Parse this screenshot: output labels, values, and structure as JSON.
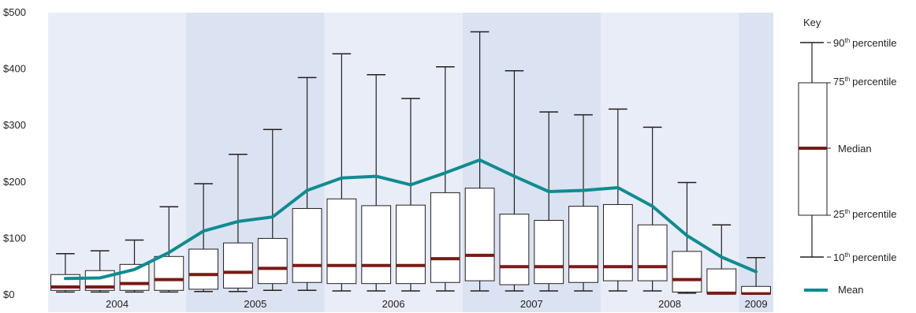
{
  "chart_data": {
    "type": "box",
    "ylim": [
      0,
      500
    ],
    "yticks": [
      0,
      100,
      200,
      300,
      400,
      500
    ],
    "ytick_labels": [
      "$0",
      "$100",
      "$200",
      "$300",
      "$400",
      "$500"
    ],
    "years": [
      {
        "label": "2004",
        "start": 0,
        "end": 4
      },
      {
        "label": "2005",
        "start": 4,
        "end": 8
      },
      {
        "label": "2006",
        "start": 8,
        "end": 12
      },
      {
        "label": "2007",
        "start": 12,
        "end": 16
      },
      {
        "label": "2008",
        "start": 16,
        "end": 20
      },
      {
        "label": "2009",
        "start": 20,
        "end": 21
      }
    ],
    "boxes": [
      {
        "p10": 5,
        "p25": 8,
        "median": 14,
        "p75": 36,
        "p90": 73
      },
      {
        "p10": 5,
        "p25": 8,
        "median": 14,
        "p75": 43,
        "p90": 78
      },
      {
        "p10": 5,
        "p25": 8,
        "median": 20,
        "p75": 54,
        "p90": 97
      },
      {
        "p10": 5,
        "p25": 8,
        "median": 27,
        "p75": 68,
        "p90": 156
      },
      {
        "p10": 6,
        "p25": 10,
        "median": 36,
        "p75": 81,
        "p90": 197
      },
      {
        "p10": 6,
        "p25": 12,
        "median": 40,
        "p75": 92,
        "p90": 249
      },
      {
        "p10": 8,
        "p25": 20,
        "median": 47,
        "p75": 100,
        "p90": 293
      },
      {
        "p10": 8,
        "p25": 22,
        "median": 52,
        "p75": 153,
        "p90": 385
      },
      {
        "p10": 7,
        "p25": 20,
        "median": 52,
        "p75": 170,
        "p90": 427
      },
      {
        "p10": 7,
        "p25": 20,
        "median": 52,
        "p75": 158,
        "p90": 390
      },
      {
        "p10": 7,
        "p25": 20,
        "median": 52,
        "p75": 159,
        "p90": 348
      },
      {
        "p10": 7,
        "p25": 22,
        "median": 64,
        "p75": 181,
        "p90": 404
      },
      {
        "p10": 7,
        "p25": 25,
        "median": 70,
        "p75": 189,
        "p90": 466
      },
      {
        "p10": 7,
        "p25": 18,
        "median": 50,
        "p75": 143,
        "p90": 397
      },
      {
        "p10": 7,
        "p25": 20,
        "median": 50,
        "p75": 132,
        "p90": 324
      },
      {
        "p10": 7,
        "p25": 22,
        "median": 50,
        "p75": 157,
        "p90": 319
      },
      {
        "p10": 7,
        "p25": 25,
        "median": 50,
        "p75": 160,
        "p90": 329
      },
      {
        "p10": 7,
        "p25": 25,
        "median": 50,
        "p75": 124,
        "p90": 297
      },
      {
        "p10": 3,
        "p25": 5,
        "median": 27,
        "p75": 77,
        "p90": 199
      },
      {
        "p10": 2,
        "p25": 3,
        "median": 3,
        "p75": 46,
        "p90": 124
      },
      {
        "p10": 2,
        "p25": 2,
        "median": 2,
        "p75": 15,
        "p90": 66
      }
    ],
    "mean": [
      29,
      30,
      45,
      75,
      113,
      130,
      138,
      185,
      207,
      210,
      195,
      216,
      239,
      210,
      183,
      185,
      190,
      157,
      105,
      67,
      41
    ],
    "legend": {
      "title": "Key",
      "p90_label": "90",
      "p75_label": "75",
      "median_label": "Median",
      "p25_label": "25",
      "p10_label": "10",
      "ordinal_suffix": "th",
      "percentile_word": "percentile",
      "mean_label": "Mean"
    },
    "colors": {
      "band_light": "#e9edf7",
      "band_dark": "#dbe3f2",
      "box_fill": "#ffffff",
      "stroke": "#231f20",
      "median": "#7a1a16",
      "mean": "#0e8c91"
    }
  }
}
